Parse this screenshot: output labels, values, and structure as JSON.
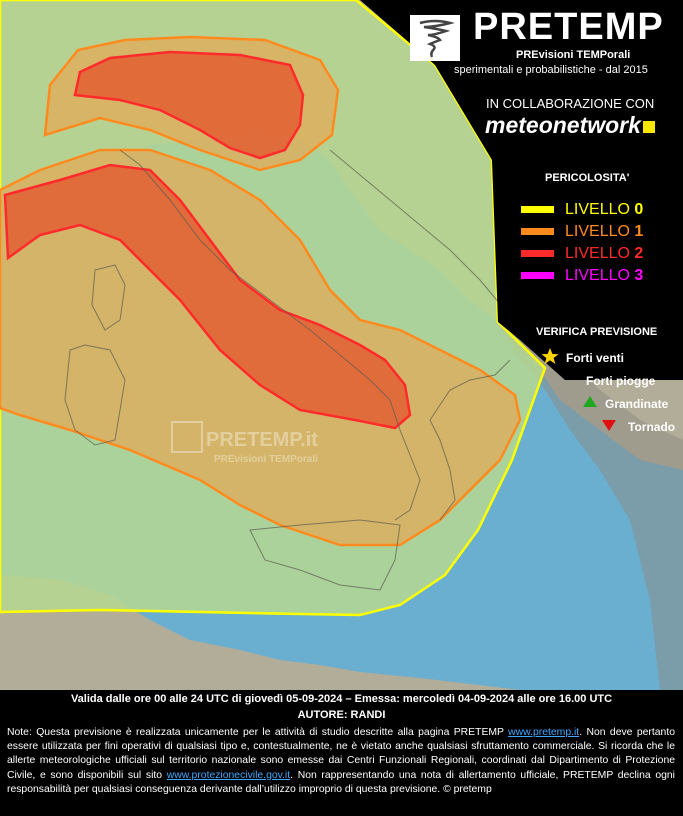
{
  "header": {
    "brand": "PRETEMP",
    "subtitle_1": "PREvisioni TEMPorali",
    "subtitle_2": "sperimentali e probabilistiche - dal 2015",
    "collaboration": "IN COLLABORAZIONE CON",
    "partner": "meteonetwork"
  },
  "legend": {
    "title": "PERICOLOSITA'",
    "levels": [
      {
        "label": "LIVELLO",
        "num": "0",
        "color": "#ffff00"
      },
      {
        "label": "LIVELLO",
        "num": "1",
        "color": "#ff8a1e"
      },
      {
        "label": "LIVELLO",
        "num": "2",
        "color": "#ff2a2a"
      },
      {
        "label": "LIVELLO",
        "num": "3",
        "color": "#ff00ff"
      }
    ]
  },
  "verifica": {
    "title": "VERIFICA PREVISIONE",
    "items": [
      {
        "label": "Forti venti",
        "symbol": "star",
        "color": "#ffd400"
      },
      {
        "label": "Forti piogge",
        "symbol": "circle",
        "color": "#3a3ad8"
      },
      {
        "label": "Grandinate",
        "symbol": "triangle-up",
        "color": "#1fa81f"
      },
      {
        "label": "Tornado",
        "symbol": "triangle-down",
        "color": "#e01010"
      }
    ]
  },
  "watermark": {
    "title": "PRETEMP.it",
    "subtitle": "PREvisioni TEMPorali"
  },
  "footer": {
    "validity": "Valida dalle ore 00 alle 24 UTC di giovedì 05-09-2024 – Emessa: mercoledì 04-09-2024 alle ore 16.00 UTC",
    "author": "AUTORE: RANDI",
    "note_1": "Note: Questa previsione è realizzata unicamente per le attività di studio descritte alla pagina PRETEMP ",
    "link_1": "www.pretemp.it",
    "note_2": ". Non deve pertanto essere utilizzata per fini operativi di qualsiasi tipo e, contestualmente, ne è vietato anche qualsiasi sfruttamento commerciale. Si ricorda che le allerte meteorologiche ufficiali sul territorio nazionale sono emesse dai Centri Funzionali Regionali, coordinati dal Dipartimento di Protezione Civile, e sono disponibili sul sito ",
    "link_2": "www.protezionecivile.gov.it",
    "note_3": ". Non rappresentando una nota di allertamento ufficiale, PRETEMP declina ogni responsabilità per qualsiasi conseguenza derivante dall’utilizzo improprio di questa previsione.  © pretemp"
  },
  "colors": {
    "sea": "#6aaed0",
    "land": "#b8b09c",
    "level0_fill": "#b6d891",
    "level1_fill": "#e2a957",
    "level2_fill": "#e45a30"
  }
}
